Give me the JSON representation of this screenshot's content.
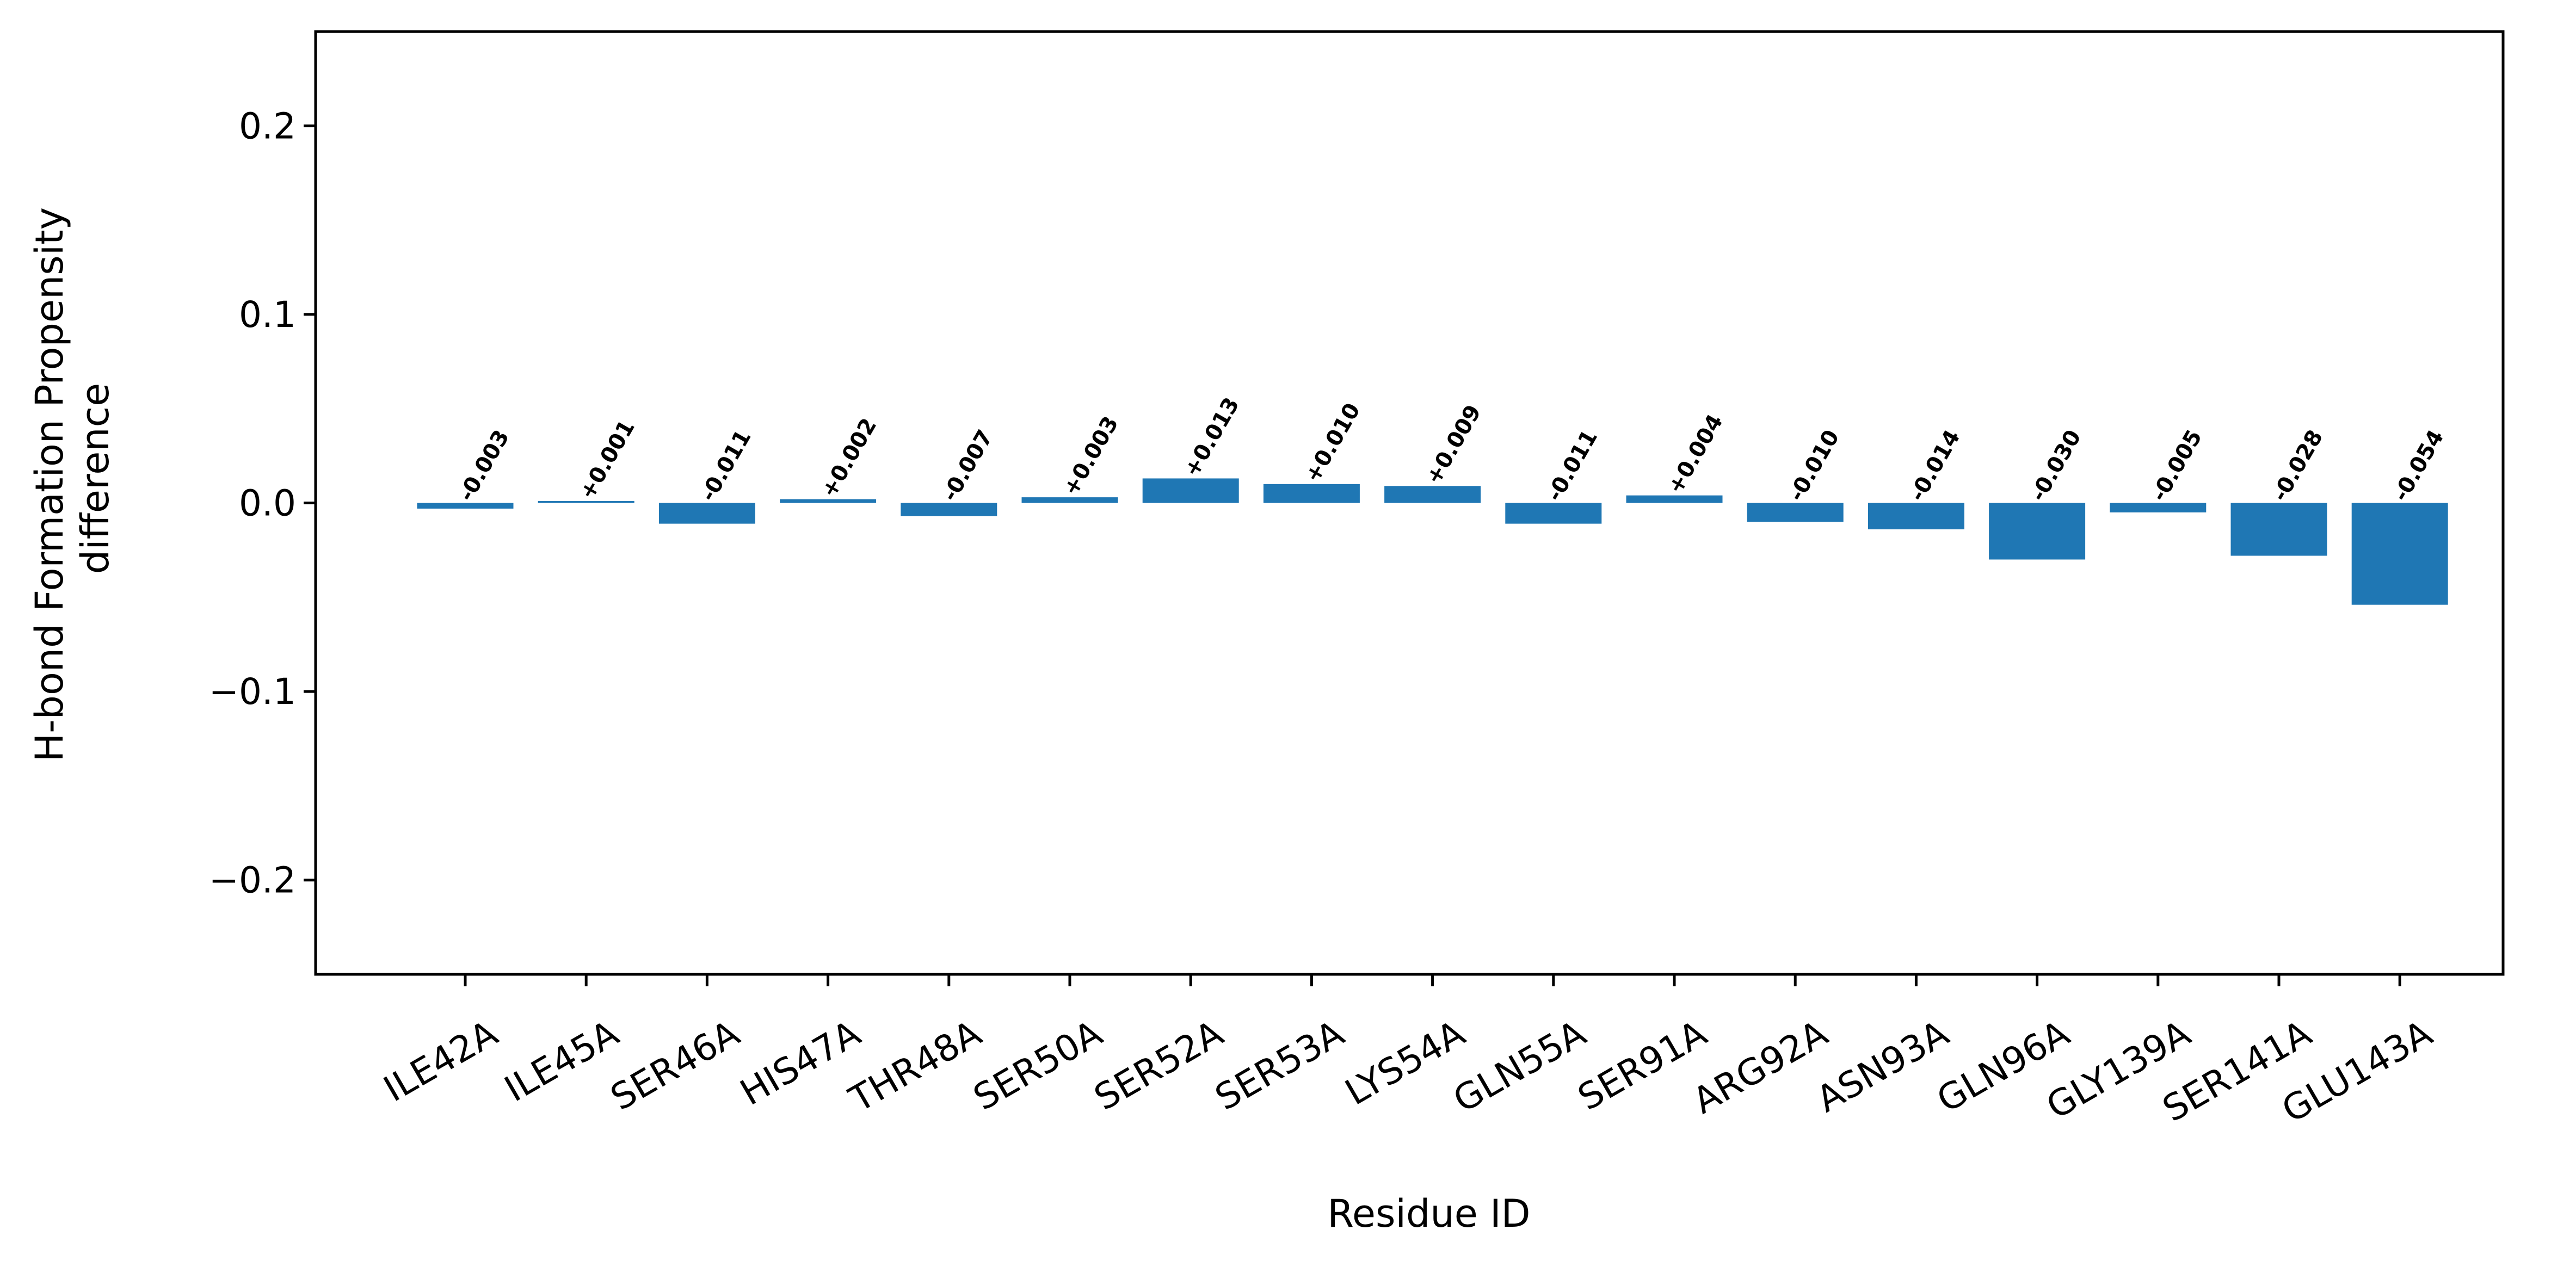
{
  "chart_data": {
    "type": "bar",
    "categories": [
      "ILE42A",
      "ILE45A",
      "SER46A",
      "HIS47A",
      "THR48A",
      "SER50A",
      "SER52A",
      "SER53A",
      "LYS54A",
      "GLN55A",
      "SER91A",
      "ARG92A",
      "ASN93A",
      "GLN96A",
      "GLY139A",
      "SER141A",
      "GLU143A"
    ],
    "values": [
      -0.003,
      0.001,
      -0.011,
      0.002,
      -0.007,
      0.003,
      0.013,
      0.01,
      0.009,
      -0.011,
      0.004,
      -0.01,
      -0.014,
      -0.03,
      -0.005,
      -0.028,
      -0.054
    ],
    "value_labels": [
      "-0.003",
      "+0.001",
      "-0.011",
      "+0.002",
      "-0.007",
      "+0.003",
      "+0.013",
      "+0.010",
      "+0.009",
      "-0.011",
      "+0.004",
      "-0.010",
      "-0.014",
      "-0.030",
      "-0.005",
      "-0.028",
      "-0.054"
    ],
    "title": "",
    "xlabel": "Residue ID",
    "ylabel_lines": [
      "H-bond Formation Propensity",
      "difference"
    ],
    "ylim": [
      -0.25,
      0.25
    ],
    "yticks": [
      -0.2,
      -0.1,
      0.0,
      0.1,
      0.2
    ],
    "ytick_labels": [
      "−0.2",
      "−0.1",
      "0.0",
      "0.1",
      "0.2"
    ],
    "grid": false,
    "bar_color": "#1f77b4"
  }
}
